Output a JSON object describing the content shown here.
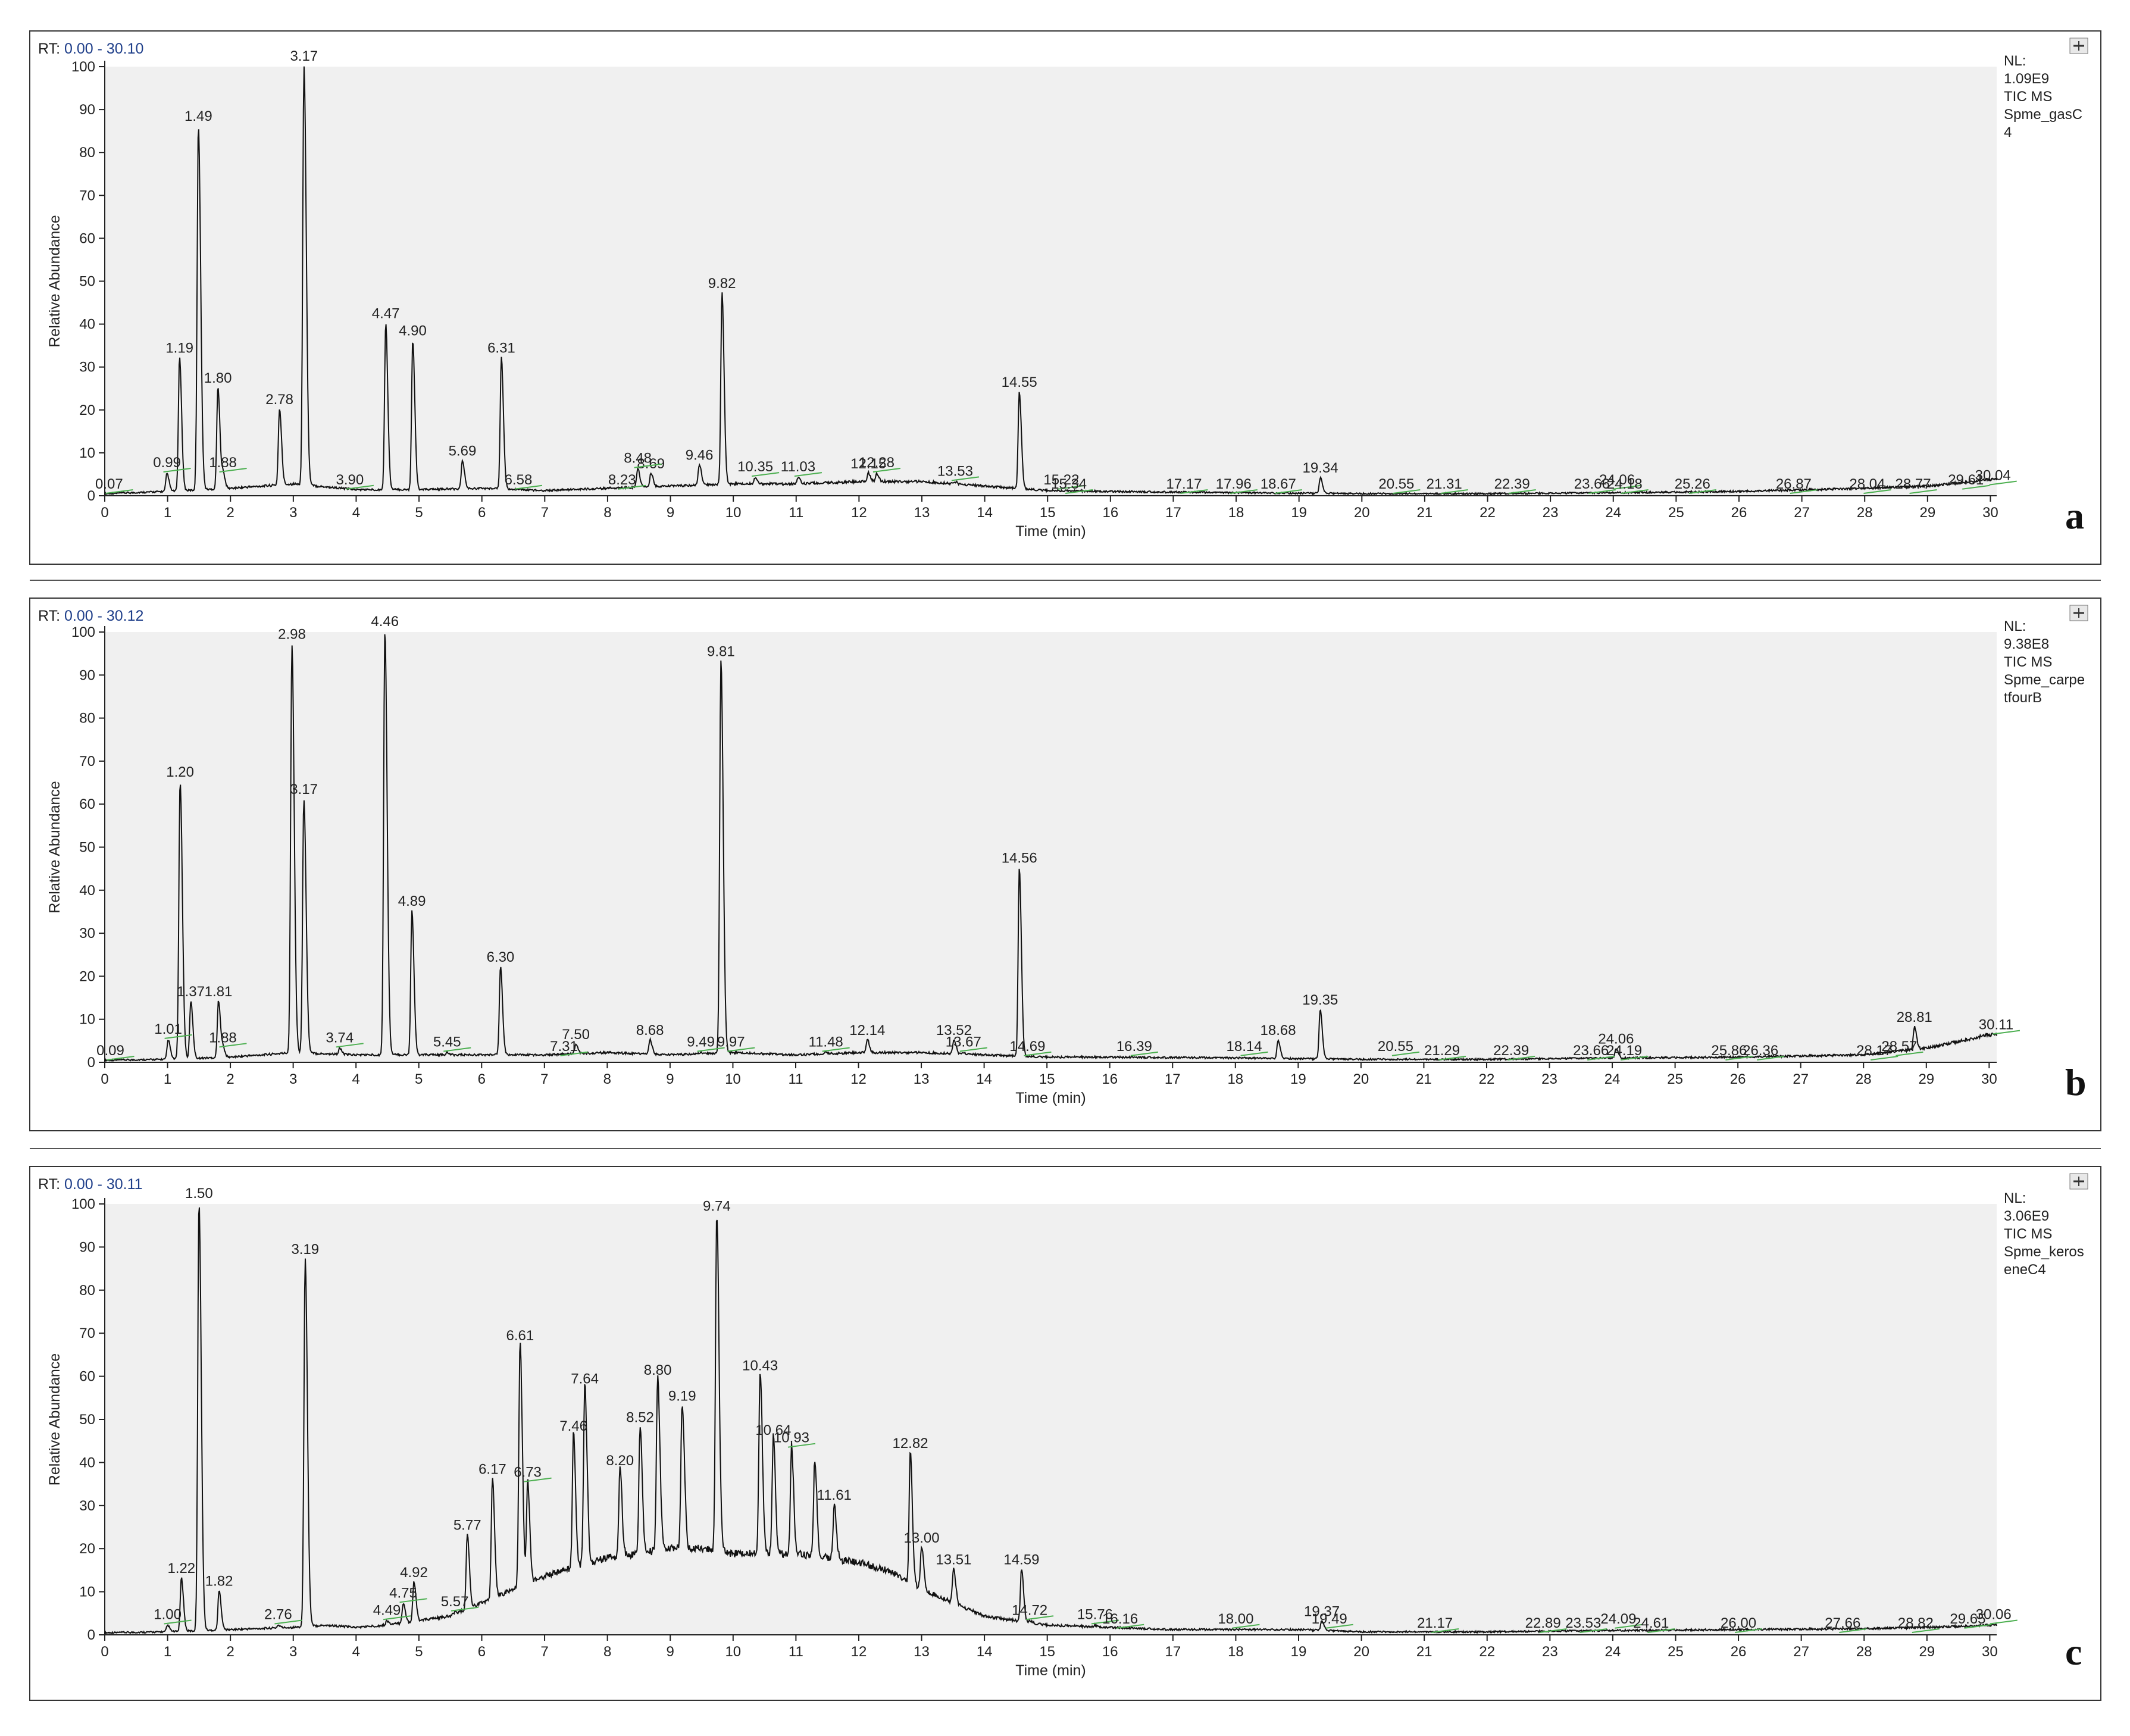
{
  "chart_data": [
    {
      "type": "line",
      "panel_letter": "a",
      "rt_label": "RT:",
      "rt_range": "0.00 - 30.10",
      "info_lines": [
        "NL:",
        "1.09E9",
        "TIC  MS",
        "Spme_gasC",
        "4"
      ],
      "xlabel": "Time (min)",
      "ylabel": "Relative Abundance",
      "xlim": [
        0,
        30.1
      ],
      "ylim": [
        0,
        100
      ],
      "xticks": [
        "0",
        "1",
        "2",
        "3",
        "4",
        "5",
        "6",
        "7",
        "8",
        "9",
        "10",
        "11",
        "12",
        "13",
        "14",
        "15",
        "16",
        "17",
        "18",
        "19",
        "20",
        "21",
        "22",
        "23",
        "24",
        "25",
        "26",
        "27",
        "28",
        "29",
        "30"
      ],
      "yticks": [
        "0",
        "10",
        "20",
        "30",
        "40",
        "50",
        "60",
        "70",
        "80",
        "90",
        "100"
      ],
      "baseline": [
        [
          0,
          0.3
        ],
        [
          1,
          0.8
        ],
        [
          2,
          1.5
        ],
        [
          3,
          2.5
        ],
        [
          4,
          1.2
        ],
        [
          5,
          1.2
        ],
        [
          6,
          1.5
        ],
        [
          7,
          1.0
        ],
        [
          8,
          1.5
        ],
        [
          9,
          2.0
        ],
        [
          10,
          2.5
        ],
        [
          11,
          2.5
        ],
        [
          12,
          3.0
        ],
        [
          13,
          3.0
        ],
        [
          14,
          2.0
        ],
        [
          15,
          1.0
        ],
        [
          16,
          0.8
        ],
        [
          18,
          0.5
        ],
        [
          20,
          0.3
        ],
        [
          22,
          0.3
        ],
        [
          24,
          0.5
        ],
        [
          26,
          0.8
        ],
        [
          28,
          1.5
        ],
        [
          29,
          2.0
        ],
        [
          30,
          3.5
        ],
        [
          30.1,
          3.5
        ]
      ],
      "peaks": [
        {
          "x": 1.19,
          "y": 32,
          "label": "1.19"
        },
        {
          "x": 1.49,
          "y": 86,
          "label": "1.49"
        },
        {
          "x": 1.8,
          "y": 25,
          "label": "1.80"
        },
        {
          "x": 2.78,
          "y": 20,
          "label": "2.78"
        },
        {
          "x": 3.17,
          "y": 100,
          "label": "3.17"
        },
        {
          "x": 4.47,
          "y": 40,
          "label": "4.47"
        },
        {
          "x": 4.9,
          "y": 36,
          "label": "4.90"
        },
        {
          "x": 5.69,
          "y": 8,
          "label": "5.69"
        },
        {
          "x": 6.31,
          "y": 32,
          "label": "6.31"
        },
        {
          "x": 8.69,
          "y": 5,
          "label": "8.69"
        },
        {
          "x": 9.46,
          "y": 7,
          "label": "9.46"
        },
        {
          "x": 9.82,
          "y": 47,
          "label": "9.82"
        },
        {
          "x": 12.15,
          "y": 5,
          "label": "12.15"
        },
        {
          "x": 14.55,
          "y": 24,
          "label": "14.55"
        },
        {
          "x": 19.34,
          "y": 4,
          "label": "19.34"
        }
      ],
      "minor_labels": [
        {
          "x": 0.07,
          "y": 0,
          "label": "0.07"
        },
        {
          "x": 0.99,
          "y": 5,
          "label": "0.99"
        },
        {
          "x": 1.88,
          "y": 5,
          "label": "1.88"
        },
        {
          "x": 3.9,
          "y": 1,
          "label": "3.90"
        },
        {
          "x": 6.58,
          "y": 1,
          "label": "6.58"
        },
        {
          "x": 8.23,
          "y": 1,
          "label": "8.23"
        },
        {
          "x": 8.48,
          "y": 6,
          "label": "8.48"
        },
        {
          "x": 10.35,
          "y": 4,
          "label": "10.35"
        },
        {
          "x": 11.03,
          "y": 4,
          "label": "11.03"
        },
        {
          "x": 12.28,
          "y": 5,
          "label": "12.28"
        },
        {
          "x": 13.53,
          "y": 3,
          "label": "13.53"
        },
        {
          "x": 15.22,
          "y": 1,
          "label": "15.22"
        },
        {
          "x": 15.34,
          "y": 0,
          "label": "15.34"
        },
        {
          "x": 17.17,
          "y": 0,
          "label": "17.17"
        },
        {
          "x": 17.96,
          "y": 0,
          "label": "17.96"
        },
        {
          "x": 18.67,
          "y": 0,
          "label": "18.67"
        },
        {
          "x": 20.55,
          "y": 0,
          "label": "20.55"
        },
        {
          "x": 21.31,
          "y": 0,
          "label": "21.31"
        },
        {
          "x": 22.39,
          "y": 0,
          "label": "22.39"
        },
        {
          "x": 23.66,
          "y": 0,
          "label": "23.66"
        },
        {
          "x": 24.06,
          "y": 1,
          "label": "24.06"
        },
        {
          "x": 24.18,
          "y": 0,
          "label": "24.18"
        },
        {
          "x": 25.26,
          "y": 0,
          "label": "25.26"
        },
        {
          "x": 26.87,
          "y": 0,
          "label": "26.87"
        },
        {
          "x": 28.04,
          "y": 0,
          "label": "28.04"
        },
        {
          "x": 28.77,
          "y": 0,
          "label": "28.77"
        },
        {
          "x": 29.61,
          "y": 1,
          "label": "29.61"
        },
        {
          "x": 30.04,
          "y": 2,
          "label": "30.04"
        }
      ]
    },
    {
      "type": "line",
      "panel_letter": "b",
      "rt_label": "RT:",
      "rt_range": "0.00 - 30.12",
      "info_lines": [
        "NL:",
        "9.38E8",
        "TIC  MS",
        "Spme_carpe",
        "tfourB"
      ],
      "xlabel": "Time (min)",
      "ylabel": "Relative Abundance",
      "xlim": [
        0,
        30.12
      ],
      "ylim": [
        0,
        100
      ],
      "xticks": [
        "0",
        "1",
        "2",
        "3",
        "4",
        "5",
        "6",
        "7",
        "8",
        "9",
        "10",
        "11",
        "12",
        "13",
        "14",
        "15",
        "16",
        "17",
        "18",
        "19",
        "20",
        "21",
        "22",
        "23",
        "24",
        "25",
        "26",
        "27",
        "28",
        "29",
        "30"
      ],
      "yticks": [
        "0",
        "10",
        "20",
        "30",
        "40",
        "50",
        "60",
        "70",
        "80",
        "90",
        "100"
      ],
      "baseline": [
        [
          0,
          0.3
        ],
        [
          1,
          0.5
        ],
        [
          2,
          1.0
        ],
        [
          3,
          2.0
        ],
        [
          4,
          1.5
        ],
        [
          5,
          1.5
        ],
        [
          6,
          1.5
        ],
        [
          7,
          1.5
        ],
        [
          8,
          2.0
        ],
        [
          9,
          1.5
        ],
        [
          10,
          2.0
        ],
        [
          11,
          1.5
        ],
        [
          12,
          2.0
        ],
        [
          13,
          2.0
        ],
        [
          14,
          1.5
        ],
        [
          15,
          1.0
        ],
        [
          16,
          1.0
        ],
        [
          18,
          0.8
        ],
        [
          20,
          0.5
        ],
        [
          22,
          0.5
        ],
        [
          24,
          0.8
        ],
        [
          26,
          1.0
        ],
        [
          28,
          1.5
        ],
        [
          29,
          3.0
        ],
        [
          30,
          6.0
        ],
        [
          30.12,
          6.0
        ]
      ],
      "peaks": [
        {
          "x": 1.2,
          "y": 65,
          "label": "1.20"
        },
        {
          "x": 1.37,
          "y": 14,
          "label": "1.37"
        },
        {
          "x": 1.81,
          "y": 14,
          "label": "1.81"
        },
        {
          "x": 2.98,
          "y": 97,
          "label": "2.98"
        },
        {
          "x": 3.17,
          "y": 61,
          "label": "3.17"
        },
        {
          "x": 4.46,
          "y": 100,
          "label": "4.46"
        },
        {
          "x": 4.89,
          "y": 35,
          "label": "4.89"
        },
        {
          "x": 6.3,
          "y": 22,
          "label": "6.30"
        },
        {
          "x": 7.5,
          "y": 4,
          "label": "7.50"
        },
        {
          "x": 8.68,
          "y": 5,
          "label": "8.68"
        },
        {
          "x": 9.81,
          "y": 93,
          "label": "9.81"
        },
        {
          "x": 12.14,
          "y": 5,
          "label": "12.14"
        },
        {
          "x": 13.52,
          "y": 5,
          "label": "13.52"
        },
        {
          "x": 14.56,
          "y": 45,
          "label": "14.56"
        },
        {
          "x": 18.68,
          "y": 5,
          "label": "18.68"
        },
        {
          "x": 19.35,
          "y": 12,
          "label": "19.35"
        },
        {
          "x": 24.06,
          "y": 3,
          "label": "24.06"
        },
        {
          "x": 28.81,
          "y": 8,
          "label": "28.81"
        }
      ],
      "minor_labels": [
        {
          "x": 0.09,
          "y": 0,
          "label": "0.09"
        },
        {
          "x": 1.01,
          "y": 5,
          "label": "1.01"
        },
        {
          "x": 1.88,
          "y": 3,
          "label": "1.88"
        },
        {
          "x": 3.74,
          "y": 3,
          "label": "3.74"
        },
        {
          "x": 5.45,
          "y": 2,
          "label": "5.45"
        },
        {
          "x": 7.31,
          "y": 1,
          "label": "7.31"
        },
        {
          "x": 9.49,
          "y": 2,
          "label": "9.49"
        },
        {
          "x": 9.97,
          "y": 2,
          "label": "9.97"
        },
        {
          "x": 11.48,
          "y": 2,
          "label": "11.48"
        },
        {
          "x": 13.67,
          "y": 2,
          "label": "13.67"
        },
        {
          "x": 14.69,
          "y": 1,
          "label": "14.69"
        },
        {
          "x": 16.39,
          "y": 1,
          "label": "16.39"
        },
        {
          "x": 18.14,
          "y": 1,
          "label": "18.14"
        },
        {
          "x": 20.55,
          "y": 1,
          "label": "20.55"
        },
        {
          "x": 21.29,
          "y": 0,
          "label": "21.29"
        },
        {
          "x": 22.39,
          "y": 0,
          "label": "22.39"
        },
        {
          "x": 23.66,
          "y": 0,
          "label": "23.66"
        },
        {
          "x": 24.19,
          "y": 0,
          "label": "24.19"
        },
        {
          "x": 25.86,
          "y": 0,
          "label": "25.86"
        },
        {
          "x": 26.36,
          "y": 0,
          "label": "26.36"
        },
        {
          "x": 28.17,
          "y": 0,
          "label": "28.17"
        },
        {
          "x": 28.57,
          "y": 1,
          "label": "28.57"
        },
        {
          "x": 30.11,
          "y": 6,
          "label": "30.11"
        }
      ]
    },
    {
      "type": "line",
      "panel_letter": "c",
      "rt_label": "RT:",
      "rt_range": "0.00 - 30.11",
      "info_lines": [
        "NL:",
        "3.06E9",
        "TIC  MS",
        "Spme_keros",
        "eneC4"
      ],
      "xlabel": "Time (min)",
      "ylabel": "Relative Abundance",
      "xlim": [
        0,
        30.11
      ],
      "ylim": [
        0,
        100
      ],
      "xticks": [
        "0",
        "1",
        "2",
        "3",
        "4",
        "5",
        "6",
        "7",
        "8",
        "9",
        "10",
        "11",
        "12",
        "13",
        "14",
        "15",
        "16",
        "17",
        "18",
        "19",
        "20",
        "21",
        "22",
        "23",
        "24",
        "25",
        "26",
        "27",
        "28",
        "29",
        "30"
      ],
      "yticks": [
        "0",
        "10",
        "20",
        "30",
        "40",
        "50",
        "60",
        "70",
        "80",
        "90",
        "100"
      ],
      "baseline": [
        [
          0,
          0.3
        ],
        [
          1,
          0.5
        ],
        [
          2,
          1.0
        ],
        [
          3,
          1.5
        ],
        [
          3.5,
          2.0
        ],
        [
          4,
          1.5
        ],
        [
          4.5,
          2.0
        ],
        [
          5,
          3.0
        ],
        [
          5.5,
          4.0
        ],
        [
          6,
          7.0
        ],
        [
          6.5,
          10.0
        ],
        [
          7,
          13.0
        ],
        [
          7.5,
          15.0
        ],
        [
          8,
          17.0
        ],
        [
          8.5,
          18.0
        ],
        [
          9,
          19.0
        ],
        [
          9.5,
          19.0
        ],
        [
          10,
          18.0
        ],
        [
          10.5,
          18.0
        ],
        [
          11,
          18.0
        ],
        [
          11.5,
          17.0
        ],
        [
          12,
          16.0
        ],
        [
          12.5,
          14.0
        ],
        [
          13,
          10.0
        ],
        [
          13.5,
          7.0
        ],
        [
          14,
          4.0
        ],
        [
          14.5,
          3.0
        ],
        [
          15,
          2.0
        ],
        [
          16,
          1.5
        ],
        [
          17,
          1.0
        ],
        [
          18,
          1.0
        ],
        [
          19,
          1.0
        ],
        [
          20,
          0.5
        ],
        [
          22,
          0.5
        ],
        [
          24,
          0.8
        ],
        [
          26,
          1.0
        ],
        [
          28,
          1.2
        ],
        [
          29,
          1.5
        ],
        [
          30,
          2.0
        ],
        [
          30.11,
          2.0
        ]
      ],
      "peaks": [
        {
          "x": 1.22,
          "y": 13,
          "label": "1.22"
        },
        {
          "x": 1.5,
          "y": 100,
          "label": "1.50"
        },
        {
          "x": 1.82,
          "y": 10,
          "label": "1.82"
        },
        {
          "x": 3.19,
          "y": 87,
          "label": "3.19"
        },
        {
          "x": 4.92,
          "y": 12,
          "label": "4.92"
        },
        {
          "x": 5.77,
          "y": 23,
          "label": "5.77"
        },
        {
          "x": 6.17,
          "y": 36,
          "label": "6.17"
        },
        {
          "x": 6.61,
          "y": 67,
          "label": "6.61"
        },
        {
          "x": 7.46,
          "y": 46,
          "label": "7.46"
        },
        {
          "x": 7.64,
          "y": 57,
          "label": "7.64"
        },
        {
          "x": 8.2,
          "y": 38,
          "label": "8.20"
        },
        {
          "x": 8.52,
          "y": 48,
          "label": "8.52"
        },
        {
          "x": 8.8,
          "y": 59,
          "label": "8.80"
        },
        {
          "x": 9.19,
          "y": 53,
          "label": "9.19"
        },
        {
          "x": 9.74,
          "y": 97,
          "label": "9.74"
        },
        {
          "x": 10.43,
          "y": 60,
          "label": "10.43"
        },
        {
          "x": 10.64,
          "y": 45,
          "label": "10.64"
        },
        {
          "x": 11.3,
          "y": 40
        },
        {
          "x": 11.61,
          "y": 30,
          "label": "11.61"
        },
        {
          "x": 12.82,
          "y": 42,
          "label": "12.82"
        },
        {
          "x": 13.0,
          "y": 20,
          "label": "13.00"
        },
        {
          "x": 13.51,
          "y": 15,
          "label": "13.51"
        },
        {
          "x": 14.59,
          "y": 15,
          "label": "14.59"
        },
        {
          "x": 19.37,
          "y": 3,
          "label": "19.37"
        }
      ],
      "minor_labels": [
        {
          "x": 1.0,
          "y": 2,
          "label": "1.00"
        },
        {
          "x": 2.76,
          "y": 2,
          "label": "2.76"
        },
        {
          "x": 4.49,
          "y": 3,
          "label": "4.49"
        },
        {
          "x": 4.75,
          "y": 7,
          "label": "4.75"
        },
        {
          "x": 5.57,
          "y": 5,
          "label": "5.57"
        },
        {
          "x": 6.73,
          "y": 35,
          "label": "6.73"
        },
        {
          "x": 10.93,
          "y": 43,
          "label": "10.93"
        },
        {
          "x": 14.72,
          "y": 3,
          "label": "14.72"
        },
        {
          "x": 15.76,
          "y": 2,
          "label": "15.76"
        },
        {
          "x": 16.16,
          "y": 1,
          "label": "16.16"
        },
        {
          "x": 18.0,
          "y": 1,
          "label": "18.00"
        },
        {
          "x": 19.49,
          "y": 1,
          "label": "19.49"
        },
        {
          "x": 21.17,
          "y": 0,
          "label": "21.17"
        },
        {
          "x": 22.89,
          "y": 0,
          "label": "22.89"
        },
        {
          "x": 23.53,
          "y": 0,
          "label": "23.53"
        },
        {
          "x": 24.09,
          "y": 1,
          "label": "24.09"
        },
        {
          "x": 24.61,
          "y": 0,
          "label": "24.61"
        },
        {
          "x": 26.0,
          "y": 0,
          "label": "26.00"
        },
        {
          "x": 27.66,
          "y": 0,
          "label": "27.66"
        },
        {
          "x": 28.82,
          "y": 0,
          "label": "28.82"
        },
        {
          "x": 29.65,
          "y": 1,
          "label": "29.65"
        },
        {
          "x": 30.06,
          "y": 2,
          "label": "30.06"
        }
      ]
    }
  ],
  "colors": {
    "plot_background": "#f0f0f0",
    "trace": "#111111",
    "axis": "#222222",
    "rt_range": "#1f3f8a",
    "annotation_line": "#4caf50",
    "panel_border": "#333333"
  },
  "pin_icon": "pin-icon"
}
